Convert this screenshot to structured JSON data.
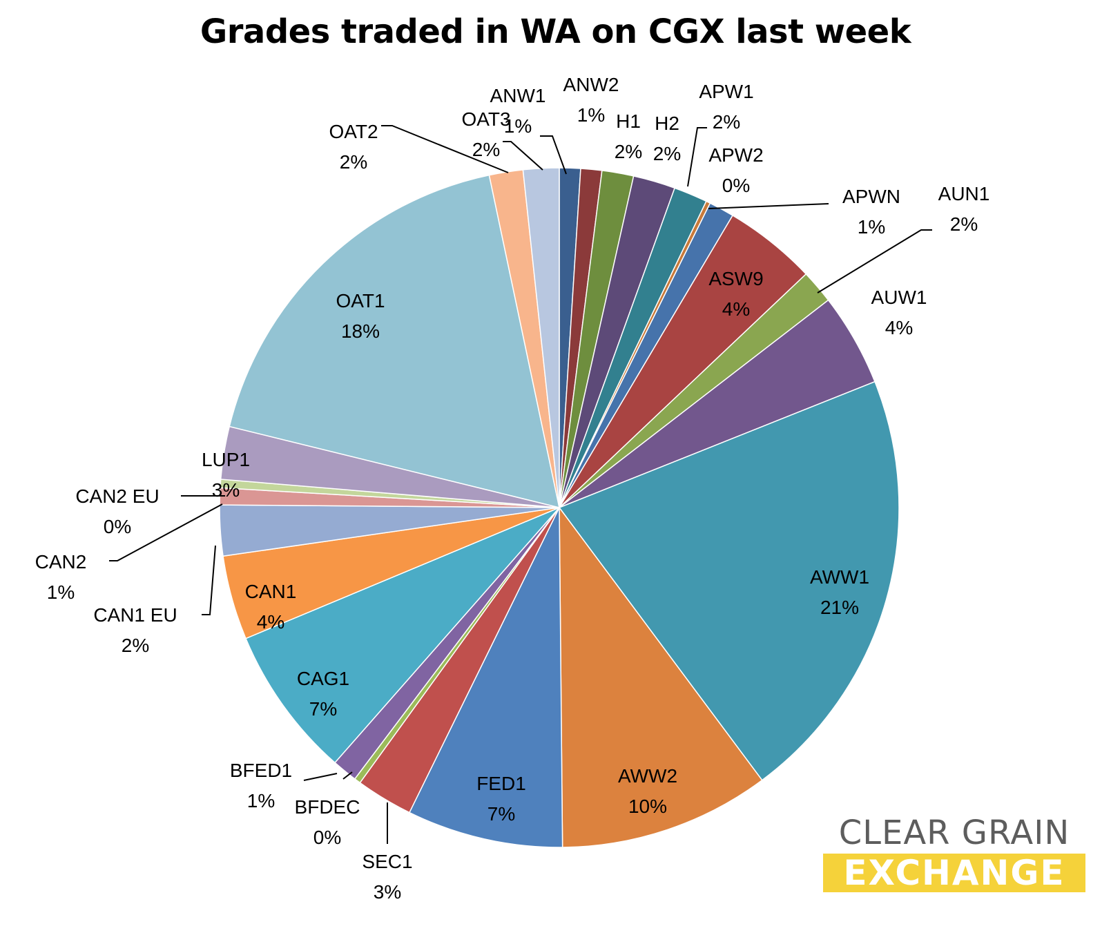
{
  "chart_data": {
    "type": "pie",
    "title": "Grades traded in WA on CGX last week",
    "slices": [
      {
        "label": "ANW1",
        "value": 1.0,
        "pct_label": "1%",
        "color": "#3a5f8f"
      },
      {
        "label": "ANW2",
        "value": 1.0,
        "pct_label": "1%",
        "color": "#8b3a3a"
      },
      {
        "label": "H1",
        "value": 1.5,
        "pct_label": "2%",
        "color": "#6e8e3e"
      },
      {
        "label": "H2",
        "value": 2.0,
        "pct_label": "2%",
        "color": "#5d4a78"
      },
      {
        "label": "APW1",
        "value": 1.6,
        "pct_label": "2%",
        "color": "#32808f"
      },
      {
        "label": "APW2",
        "value": 0.2,
        "pct_label": "0%",
        "color": "#c87a3a"
      },
      {
        "label": "APWN",
        "value": 1.2,
        "pct_label": "1%",
        "color": "#4673ab"
      },
      {
        "label": "ASW9",
        "value": 4.4,
        "pct_label": "4%",
        "color": "#a94442"
      },
      {
        "label": "AUN1",
        "value": 1.6,
        "pct_label": "2%",
        "color": "#8aa650"
      },
      {
        "label": "AUW1",
        "value": 4.4,
        "pct_label": "4%",
        "color": "#72578d"
      },
      {
        "label": "AWW1",
        "value": 20.8,
        "pct_label": "21%",
        "color": "#4298af"
      },
      {
        "label": "AWW2",
        "value": 10.0,
        "pct_label": "10%",
        "color": "#dc823e"
      },
      {
        "label": "FED1",
        "value": 7.4,
        "pct_label": "7%",
        "color": "#4f81bd"
      },
      {
        "label": "SEC1",
        "value": 2.7,
        "pct_label": "3%",
        "color": "#c0504d"
      },
      {
        "label": "BFDEC",
        "value": 0.3,
        "pct_label": "0%",
        "color": "#9bbb59"
      },
      {
        "label": "BFED1",
        "value": 1.2,
        "pct_label": "1%",
        "color": "#8064a2"
      },
      {
        "label": "CAG1",
        "value": 7.2,
        "pct_label": "7%",
        "color": "#4bacc6"
      },
      {
        "label": "CAN1",
        "value": 4.0,
        "pct_label": "4%",
        "color": "#f79646"
      },
      {
        "label": "CAN1 EU",
        "value": 2.4,
        "pct_label": "2%",
        "color": "#95abd2"
      },
      {
        "label": "CAN2",
        "value": 0.8,
        "pct_label": "1%",
        "color": "#da9694"
      },
      {
        "label": "CAN2 EU",
        "value": 0.4,
        "pct_label": "0%",
        "color": "#c3d69b"
      },
      {
        "label": "LUP1",
        "value": 2.5,
        "pct_label": "3%",
        "color": "#aa9bbf"
      },
      {
        "label": "OAT1",
        "value": 17.8,
        "pct_label": "18%",
        "color": "#93c3d3"
      },
      {
        "label": "OAT2",
        "value": 1.6,
        "pct_label": "2%",
        "color": "#f8b58c"
      },
      {
        "label": "OAT3",
        "value": 1.7,
        "pct_label": "2%",
        "color": "#b8c7e0"
      }
    ]
  },
  "logo": {
    "line1": "CLEAR GRAIN",
    "line2": "EXCHANGE",
    "line1_color": "#5d5d5d",
    "line2_bg": "#f5d23a"
  }
}
